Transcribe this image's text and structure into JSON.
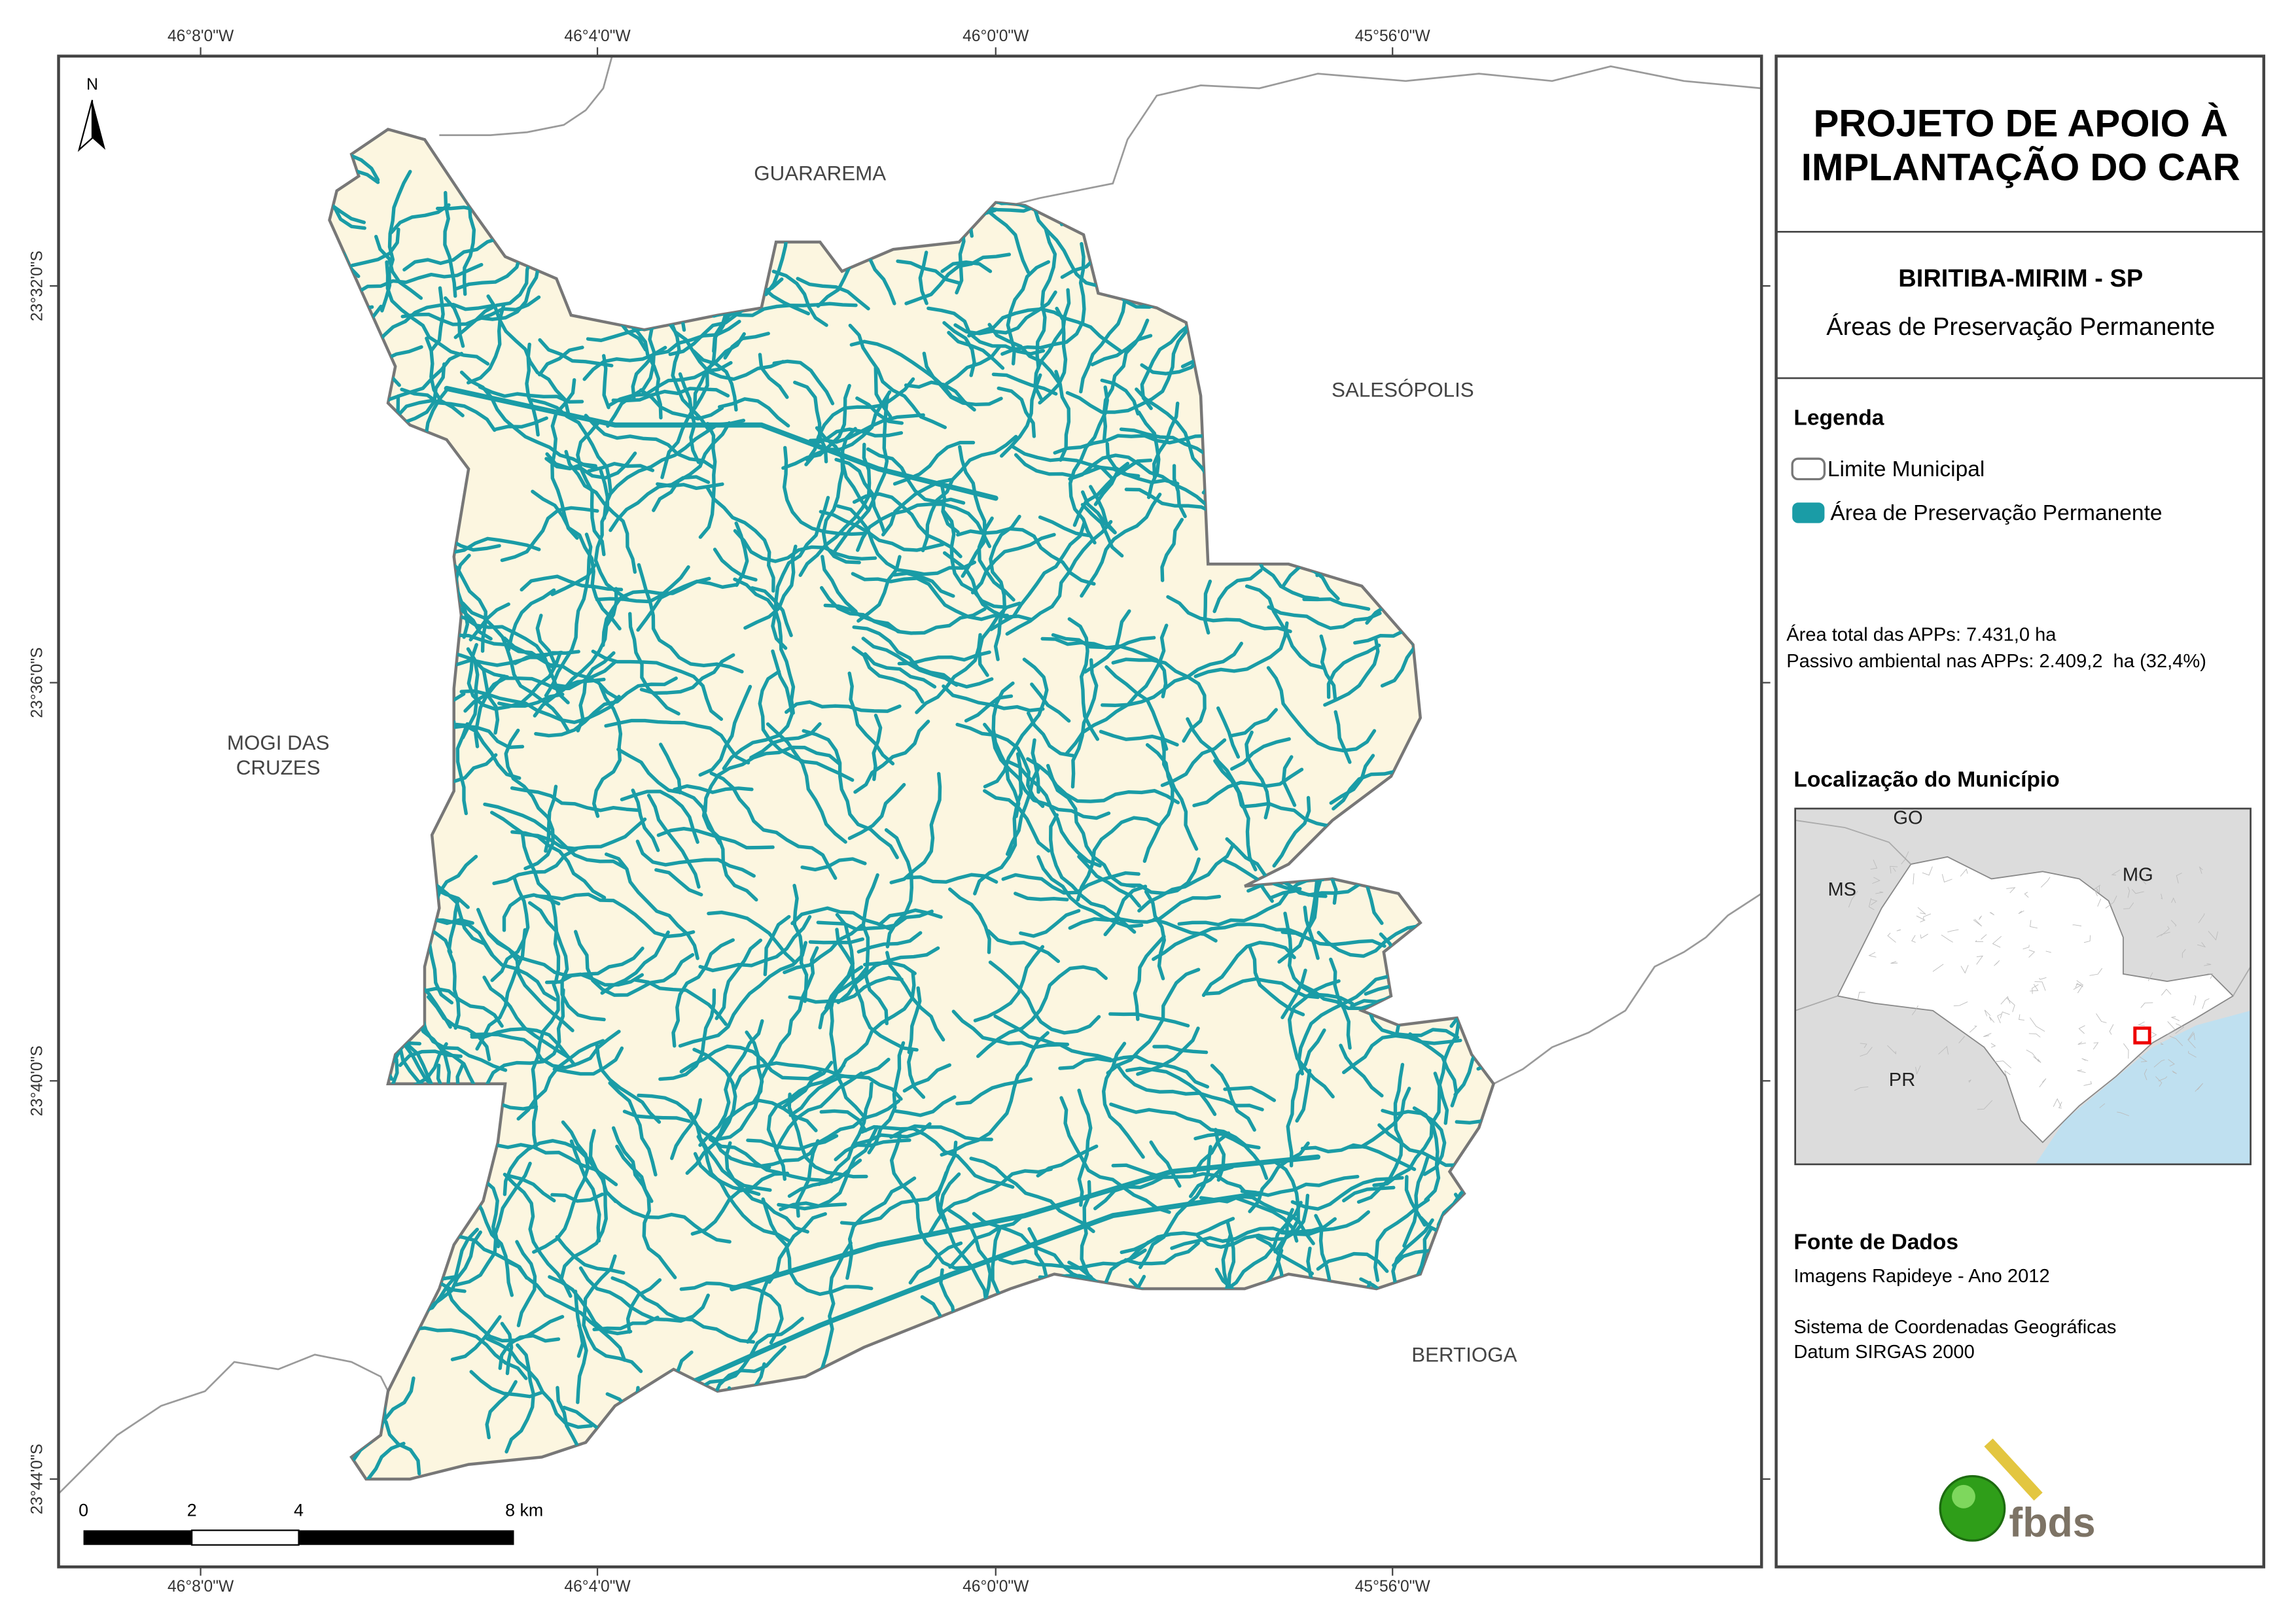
{
  "map": {
    "longitude_labels": [
      "46°8'0\"W",
      "46°4'0\"W",
      "46°0'0\"W",
      "45°56'0\"W"
    ],
    "latitude_labels": [
      "23°32'0\"S",
      "23°36'0\"S",
      "23°40'0\"S",
      "23°44'0\"S"
    ],
    "north": "N",
    "neighbors": [
      {
        "lines": [
          "GUARAREMA"
        ]
      },
      {
        "lines": [
          "SALESÓPOLIS"
        ]
      },
      {
        "lines": [
          "MOGI DAS",
          "CRUZES"
        ]
      },
      {
        "lines": [
          "BERTIOGA"
        ]
      }
    ],
    "scale_bar": [
      "0",
      "2",
      "4",
      "8 km"
    ]
  },
  "panel": {
    "title": [
      "PROJETO DE APOIO À",
      "IMPLANTAÇÃO DO CAR"
    ],
    "municipality": "BIRITIBA-MIRIM - SP",
    "subtitle": "Áreas de Preservação Permanente",
    "legend": {
      "title": "Legenda",
      "items": [
        "Limite Municipal",
        "Área de Preservação Permanente"
      ]
    },
    "stats": [
      "Área total das APPs: 7.431,0 ha",
      "Passivo ambiental nas APPs: 2.409,2  ha (32,4%)"
    ],
    "location": {
      "title": "Localização do Município",
      "labels": [
        "GO",
        "MS",
        "MG",
        "PR"
      ]
    },
    "sources": {
      "title": "Fonte de Dados",
      "lines": [
        "Imagens Rapideye - Ano 2012",
        "Sistema de Coordenadas Geográficas",
        "Datum SIRGAS 2000"
      ]
    },
    "logo": "fbds"
  }
}
